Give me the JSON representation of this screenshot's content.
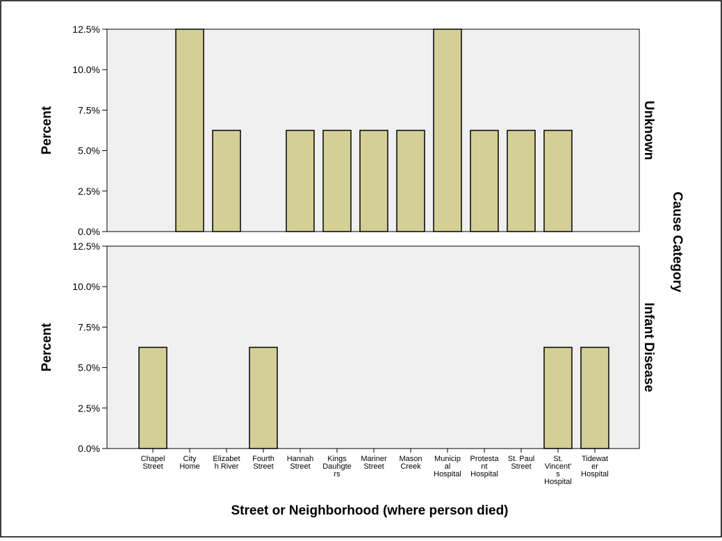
{
  "chart_data": {
    "type": "bar",
    "title": "",
    "xlabel": "Street or Neighborhood (where person died)",
    "ylabel": "Percent",
    "facet_variable": "Cause Category",
    "ylim": [
      0,
      12.5
    ],
    "y_ticks": [
      "0.0%",
      "2.5%",
      "5.0%",
      "7.5%",
      "10.0%",
      "12.5%"
    ],
    "y_tick_values": [
      0,
      2.5,
      5,
      7.5,
      10,
      12.5
    ],
    "categories": [
      [
        "Chapel",
        "Street"
      ],
      [
        "City",
        "Home"
      ],
      [
        "Elizabet",
        "h River"
      ],
      [
        "Fourth",
        "Street"
      ],
      [
        "Hannah",
        "Street"
      ],
      [
        "Kings",
        "Dauhgte",
        "rs"
      ],
      [
        "Mariner",
        "Street"
      ],
      [
        "Mason",
        "Creek"
      ],
      [
        "Municip",
        "al",
        "Hospital"
      ],
      [
        "Protesta",
        "nt",
        "Hospital"
      ],
      [
        "St. Paul",
        "Street"
      ],
      [
        "St.",
        "Vincent'",
        "s",
        "Hospital"
      ],
      [
        "Tidewat",
        "er",
        "Hospital"
      ]
    ],
    "series": [
      {
        "name": "Unknown",
        "values": [
          0,
          12.5,
          6.25,
          0,
          6.25,
          6.25,
          6.25,
          6.25,
          12.5,
          6.25,
          6.25,
          6.25,
          0
        ]
      },
      {
        "name": "Infant Disease",
        "values": [
          6.25,
          0,
          0,
          6.25,
          0,
          0,
          0,
          0,
          0,
          0,
          0,
          6.25,
          6.25
        ]
      }
    ],
    "grid": false,
    "legend": "none",
    "colors": {
      "bar_fill": "#d4cf96",
      "bar_stroke": "#000000",
      "panel_bg": "#f0f0f0"
    }
  }
}
